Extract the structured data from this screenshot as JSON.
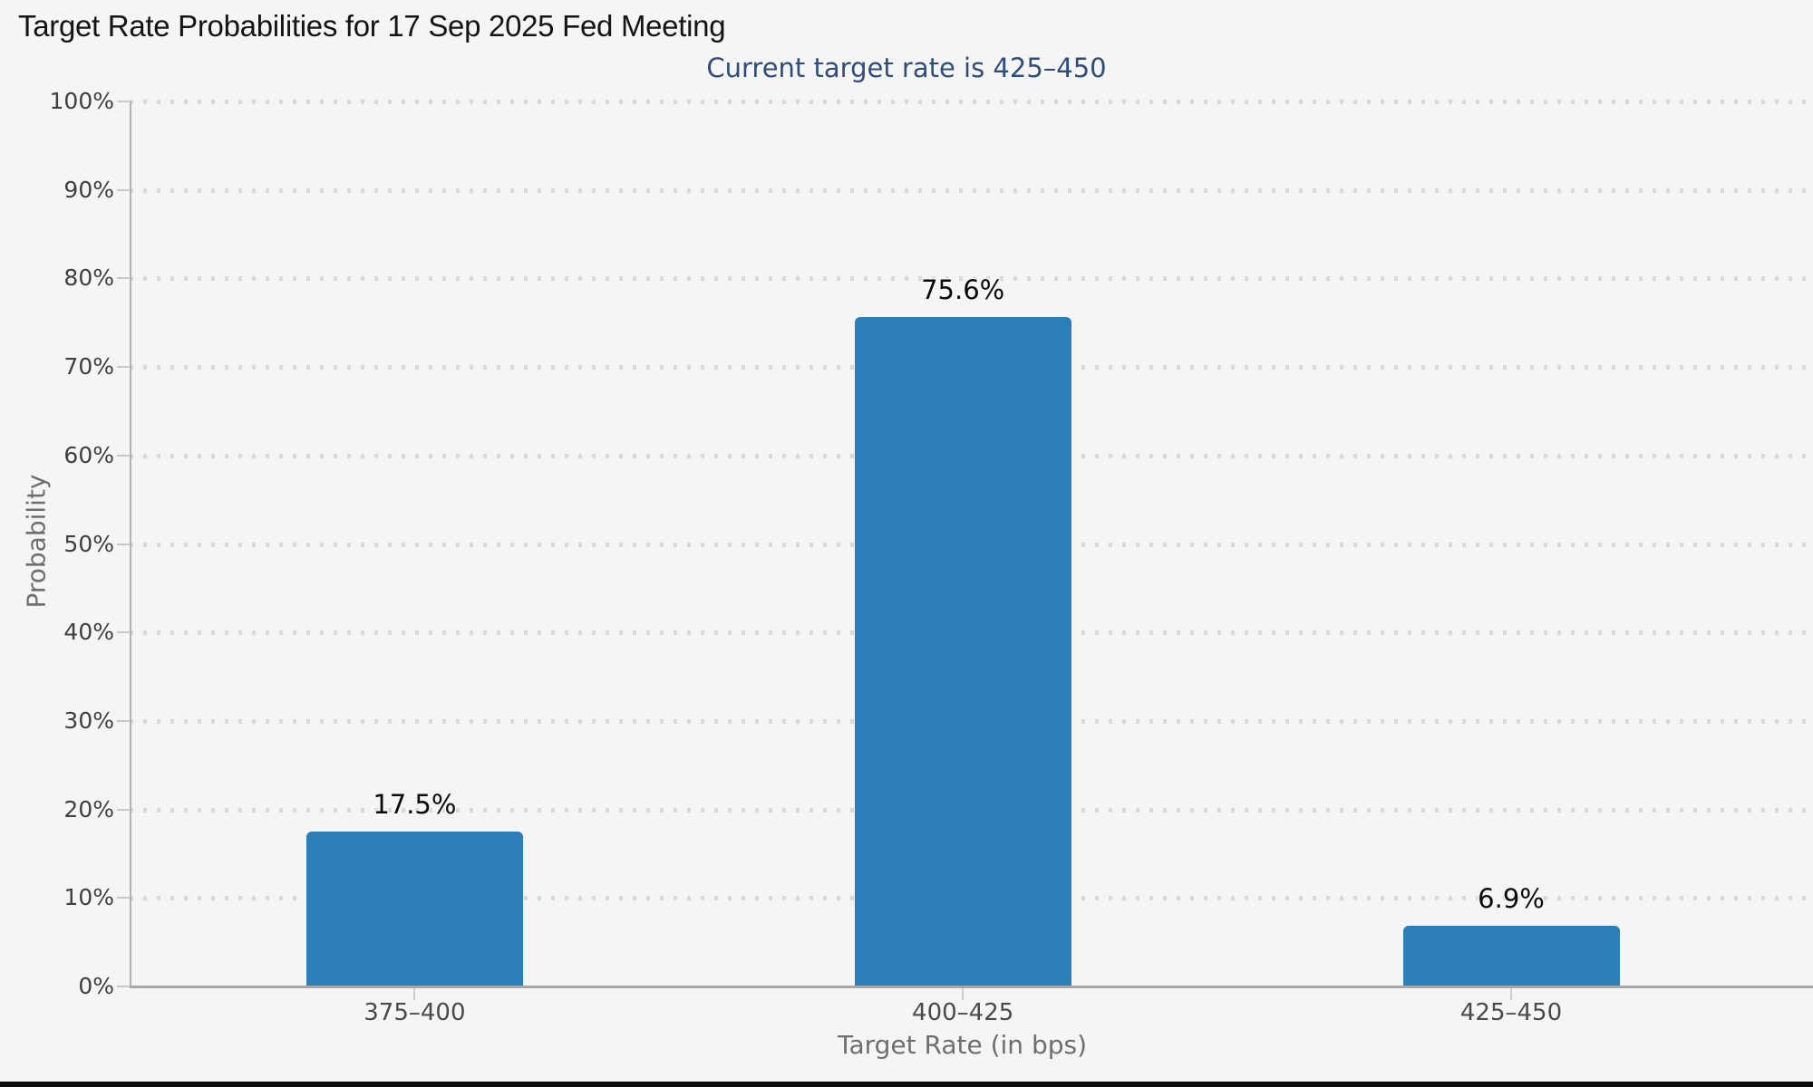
{
  "chart_data": {
    "type": "bar",
    "title": "Target Rate Probabilities for 17 Sep 2025 Fed Meeting",
    "subtitle": "Current target rate is 425–450",
    "xlabel": "Target Rate (in bps)",
    "ylabel": "Probability",
    "categories": [
      "375–400",
      "400–425",
      "425–450"
    ],
    "values": [
      17.5,
      75.6,
      6.9
    ],
    "value_labels": [
      "17.5%",
      "75.6%",
      "6.9%"
    ],
    "y_ticks": [
      "0%",
      "10%",
      "20%",
      "30%",
      "40%",
      "50%",
      "60%",
      "70%",
      "80%",
      "90%",
      "100%"
    ],
    "ylim": [
      0,
      100
    ],
    "grid": "horizontal dotted gridlines at every 10%",
    "legend": "none",
    "bar_color": "#2b7eb8",
    "subtitle_color": "#2f4d7c",
    "background_color": "#f5f5f6"
  }
}
